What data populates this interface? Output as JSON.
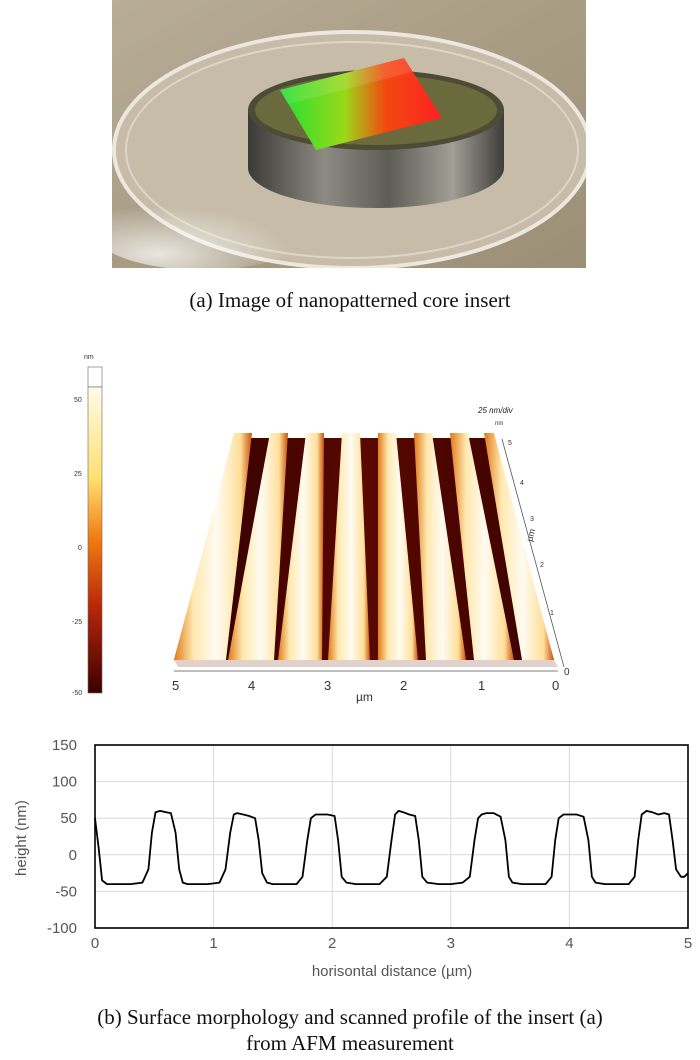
{
  "figure_a": {
    "caption": "(a) Image of nanopatterned core insert"
  },
  "figure_b_afm": {
    "colorbar_unit": "nm",
    "colorbar_ticks": [
      "50",
      "25",
      "0",
      "-25",
      "-50"
    ],
    "z_scale_label": "25 nm/div",
    "z_unit": "nm",
    "x_ticks": [
      "5",
      "4",
      "3",
      "2",
      "1",
      "0"
    ],
    "x_label": "µm",
    "y_ticks": [
      "0",
      "1",
      "2",
      "3",
      "4",
      "5"
    ],
    "y_label": "µm",
    "colors": {
      "high": "#fffbe8",
      "mid": "#f07a10",
      "low": "#3a0000"
    }
  },
  "chart_data": {
    "type": "line",
    "title": "",
    "xlabel": "horisontal distance (µm)",
    "ylabel": "height (nm)",
    "xlim": [
      0,
      5
    ],
    "ylim": [
      -100,
      150
    ],
    "x_ticks": [
      0,
      1,
      2,
      3,
      4,
      5
    ],
    "y_ticks": [
      150,
      100,
      50,
      0,
      -50,
      -100
    ],
    "grid": true,
    "series": [
      {
        "color": "#000000",
        "x": [
          0.0,
          0.03,
          0.06,
          0.1,
          0.2,
          0.3,
          0.4,
          0.45,
          0.48,
          0.51,
          0.55,
          0.6,
          0.64,
          0.68,
          0.71,
          0.74,
          0.78,
          0.85,
          0.95,
          1.05,
          1.1,
          1.14,
          1.17,
          1.2,
          1.25,
          1.3,
          1.35,
          1.38,
          1.41,
          1.45,
          1.5,
          1.6,
          1.7,
          1.75,
          1.79,
          1.82,
          1.86,
          1.9,
          1.96,
          2.02,
          2.05,
          2.08,
          2.12,
          2.2,
          2.3,
          2.4,
          2.46,
          2.5,
          2.53,
          2.56,
          2.6,
          2.65,
          2.7,
          2.73,
          2.76,
          2.8,
          2.9,
          3.0,
          3.1,
          3.16,
          3.2,
          3.23,
          3.26,
          3.3,
          3.36,
          3.42,
          3.46,
          3.49,
          3.52,
          3.6,
          3.7,
          3.8,
          3.85,
          3.88,
          3.91,
          3.95,
          4.0,
          4.06,
          4.12,
          4.16,
          4.19,
          4.22,
          4.3,
          4.4,
          4.5,
          4.55,
          4.58,
          4.61,
          4.65,
          4.7,
          4.75,
          4.8,
          4.84,
          4.87,
          4.9,
          4.94,
          4.97,
          5.0
        ],
        "y": [
          50,
          10,
          -35,
          -40,
          -40,
          -40,
          -38,
          -20,
          30,
          58,
          60,
          58,
          57,
          30,
          -20,
          -38,
          -40,
          -40,
          -40,
          -38,
          -20,
          30,
          55,
          57,
          55,
          53,
          50,
          20,
          -25,
          -38,
          -40,
          -40,
          -40,
          -30,
          20,
          50,
          55,
          55,
          55,
          53,
          20,
          -30,
          -38,
          -40,
          -40,
          -40,
          -30,
          20,
          55,
          60,
          58,
          55,
          53,
          20,
          -30,
          -38,
          -40,
          -40,
          -38,
          -30,
          20,
          50,
          55,
          57,
          57,
          52,
          20,
          -30,
          -38,
          -40,
          -40,
          -40,
          -30,
          20,
          50,
          55,
          55,
          55,
          52,
          20,
          -30,
          -38,
          -40,
          -40,
          -40,
          -30,
          20,
          55,
          60,
          58,
          55,
          57,
          55,
          20,
          -20,
          -30,
          -30,
          -25
        ]
      }
    ]
  },
  "figure_b": {
    "caption_line1": "(b) Surface morphology and scanned profile of the insert (a)",
    "caption_line2": "from AFM measurement"
  }
}
